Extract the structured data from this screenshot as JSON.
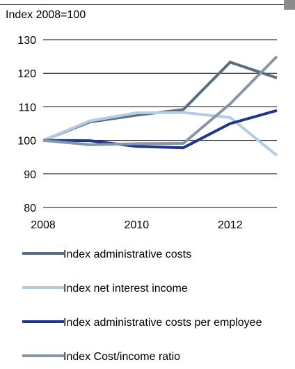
{
  "chart_data": {
    "type": "line",
    "ylabel": "Index 2008=100",
    "ylim": [
      80,
      130
    ],
    "yticks": [
      80,
      90,
      100,
      110,
      120,
      130
    ],
    "xlim": [
      2008,
      2013
    ],
    "xticks": [
      2008,
      2010,
      2012
    ],
    "grid": true,
    "legend_placement": "bottom",
    "x": [
      2008,
      2009,
      2010,
      2011,
      2012,
      2013
    ],
    "series": [
      {
        "name": "Index administrative costs",
        "color": "#5a6e80",
        "values": [
          100,
          105.5,
          107.5,
          109.2,
          123.3,
          118.6
        ]
      },
      {
        "name": "Index net interest income",
        "color": "#b3cde6",
        "values": [
          100,
          105.8,
          108.2,
          108.3,
          106.8,
          95.5
        ]
      },
      {
        "name": "Index administrative costs per employee",
        "color": "#1f3690",
        "values": [
          100,
          99.9,
          98.2,
          97.8,
          105,
          108.9
        ]
      },
      {
        "name": "Index Cost/income ratio",
        "color": "#8796a6",
        "values": [
          100,
          98.7,
          99,
          99.1,
          110.9,
          125
        ]
      }
    ]
  }
}
